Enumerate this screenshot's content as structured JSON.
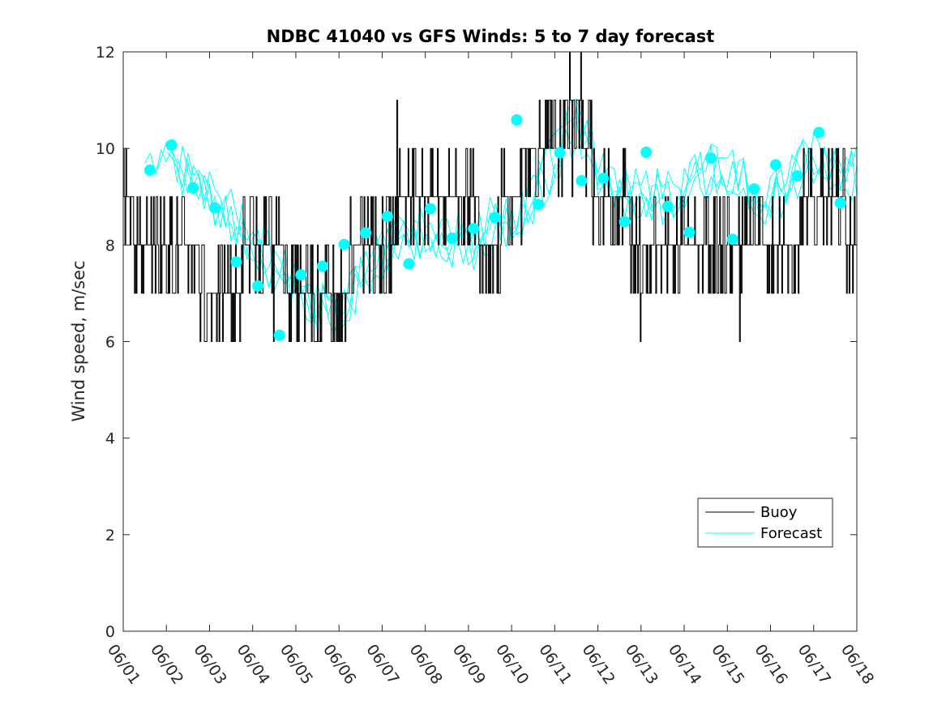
{
  "chart_data": {
    "type": "line",
    "title": "NDBC 41040 vs GFS Winds: 5 to 7 day forecast",
    "xlabel": "",
    "ylabel": "Wind speed, m/sec",
    "ylim": [
      0,
      12
    ],
    "yticks": [
      0,
      2,
      4,
      6,
      8,
      10,
      12
    ],
    "xlim": [
      0,
      17
    ],
    "xtick_labels": [
      "06/01",
      "06/02",
      "06/03",
      "06/04",
      "06/05",
      "06/06",
      "06/07",
      "06/08",
      "06/09",
      "06/10",
      "06/11",
      "06/12",
      "06/13",
      "06/14",
      "06/15",
      "06/16",
      "06/17",
      "06/18"
    ],
    "x_units": "days since 06/01 00:00",
    "grid": false,
    "legend_position": "bottom-right",
    "legend": [
      "Buoy",
      "Forecast"
    ],
    "colors": {
      "buoy": "#000000",
      "forecast": "#00ffff"
    },
    "series": [
      {
        "name": "Buoy",
        "kind": "line",
        "x": [
          0.0,
          0.5,
          1.0,
          1.5,
          2.0,
          2.5,
          3.0,
          3.5,
          4.0,
          4.5,
          5.0,
          5.5,
          6.0,
          6.5,
          7.0,
          7.5,
          8.0,
          8.5,
          9.0,
          9.5,
          10.0,
          10.5,
          11.0,
          11.5,
          12.0,
          12.5,
          13.0,
          13.5,
          14.0,
          14.5,
          15.0,
          15.5,
          16.0,
          16.5,
          17.0
        ],
        "y": [
          9,
          8,
          8,
          8,
          7,
          7,
          8,
          8,
          7,
          7,
          7,
          8,
          8,
          9,
          9,
          9,
          9,
          8,
          9,
          10,
          10,
          11,
          9,
          9,
          8,
          8,
          8,
          8,
          8,
          8,
          8,
          8,
          9,
          9,
          8
        ],
        "sample_interval_days": 0.02
      },
      {
        "name": "Forecast",
        "kind": "line",
        "x": [
          0.5,
          1.0,
          1.5,
          2.0,
          2.5,
          3.0,
          3.5,
          4.0,
          4.5,
          5.0,
          5.5,
          6.0,
          6.5,
          7.0,
          7.5,
          8.0,
          8.5,
          9.0,
          9.5,
          10.0,
          10.5,
          11.0,
          11.5,
          12.0,
          12.5,
          13.0,
          13.5,
          14.0,
          14.5,
          15.0,
          15.5,
          16.0,
          16.5,
          17.0
        ],
        "y": [
          9.7,
          10.2,
          9.4,
          9.0,
          8.6,
          8.2,
          7.5,
          7.2,
          6.7,
          6.4,
          7.3,
          7.8,
          8.1,
          8.3,
          8.2,
          7.9,
          8.4,
          8.6,
          9.0,
          9.8,
          10.6,
          9.6,
          9.2,
          9.0,
          9.0,
          9.3,
          9.5,
          9.6,
          9.3,
          8.9,
          9.4,
          9.8,
          9.6,
          9.5
        ],
        "ensemble_members": 4
      },
      {
        "name": "Forecast markers",
        "kind": "scatter",
        "x": [
          0.62,
          1.12,
          1.62,
          2.12,
          2.62,
          3.12,
          3.62,
          4.12,
          4.62,
          5.12,
          5.62,
          6.12,
          6.62,
          7.12,
          7.62,
          8.12,
          8.62,
          9.12,
          9.62,
          10.12,
          10.62,
          11.12,
          11.62,
          12.12,
          12.62,
          13.12,
          13.62,
          14.12,
          14.62,
          15.12,
          15.62,
          16.12,
          16.62
        ],
        "y": [
          9.55,
          10.07,
          9.18,
          8.77,
          7.65,
          7.15,
          6.13,
          7.38,
          7.56,
          8.01,
          8.25,
          8.59,
          7.61,
          8.75,
          8.14,
          8.34,
          8.57,
          10.59,
          8.84,
          9.91,
          9.33,
          9.38,
          8.48,
          9.92,
          8.8,
          8.26,
          9.8,
          8.12,
          9.16,
          9.66,
          9.43,
          10.33,
          8.87
        ]
      }
    ]
  }
}
